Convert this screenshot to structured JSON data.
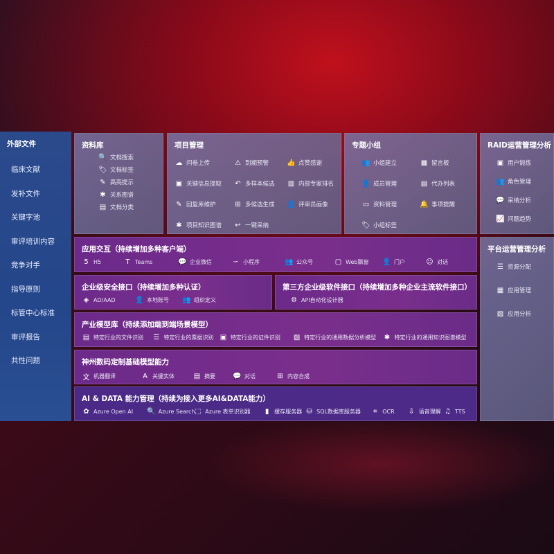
{
  "sidebar": {
    "title": "外部文件",
    "items": [
      "临床文献",
      "发补文件",
      "关键字池",
      "审评培训内容",
      "竞争对手",
      "指导原则",
      "标管中心标准",
      "审评报告",
      "共性问题"
    ]
  },
  "library": {
    "title": "资料库",
    "items": [
      {
        "icon": "file-search-icon",
        "g": "🔍",
        "label": "文档搜索"
      },
      {
        "icon": "tag-icon",
        "g": "🏷",
        "label": "文档标签"
      },
      {
        "icon": "pen-icon",
        "g": "✎",
        "label": "高亮提示"
      },
      {
        "icon": "graph-icon",
        "g": "✱",
        "label": "关系图谱"
      },
      {
        "icon": "doc-icon",
        "g": "▤",
        "label": "文档分类"
      }
    ]
  },
  "project": {
    "title": "项目管理",
    "cols": [
      [
        {
          "icon": "cloud-upload-icon",
          "g": "☁",
          "label": "问卷上传"
        },
        {
          "icon": "window-icon",
          "g": "▣",
          "label": "关键信息提取"
        },
        {
          "icon": "pen-icon",
          "g": "✎",
          "label": "回复库维护"
        },
        {
          "icon": "graph-icon",
          "g": "✱",
          "label": "项目知识图谱"
        }
      ],
      [
        {
          "icon": "alarm-icon",
          "g": "⚠",
          "label": "到期预警"
        },
        {
          "icon": "reply-all-icon",
          "g": "↶",
          "label": "多样本候选"
        },
        {
          "icon": "puzzle-icon",
          "g": "⊞",
          "label": "多候选生成"
        },
        {
          "icon": "reply-icon",
          "g": "↩",
          "label": "一键采纳"
        }
      ],
      [
        {
          "icon": "thumbs-up-icon",
          "g": "👍",
          "label": "点赞感谢"
        },
        {
          "icon": "rank-icon",
          "g": "▥",
          "label": "内部专家排名"
        },
        {
          "icon": "user-icon",
          "g": "👤",
          "label": "评审员画像"
        }
      ]
    ]
  },
  "group": {
    "title": "专题小组",
    "cols": [
      [
        {
          "icon": "users-icon",
          "g": "👥",
          "label": "小组建立"
        },
        {
          "icon": "user-add-icon",
          "g": "👤",
          "label": "成员管理"
        },
        {
          "icon": "folder-icon",
          "g": "▭",
          "label": "资料管理"
        },
        {
          "icon": "tag-icon",
          "g": "🏷",
          "label": "小组标签"
        }
      ],
      [
        {
          "icon": "bbs-icon",
          "g": "▦",
          "label": "留言板"
        },
        {
          "icon": "clipboard-icon",
          "g": "▤",
          "label": "代办列表"
        },
        {
          "icon": "bell-icon",
          "g": "🔔",
          "label": "事项提醒"
        }
      ]
    ]
  },
  "raid": {
    "title": "RAID运营管理分析",
    "items": [
      {
        "icon": "id-card-icon",
        "g": "▣",
        "label": "用户锻炼"
      },
      {
        "icon": "users-icon",
        "g": "👥",
        "label": "角色管理"
      },
      {
        "icon": "qa-icon",
        "g": "💬",
        "label": "采纳分析"
      },
      {
        "icon": "trend-icon",
        "g": "📈",
        "label": "问题趋势"
      }
    ]
  },
  "platform": {
    "title": "平台运营管理分析",
    "items": [
      {
        "icon": "checklist-icon",
        "g": "☰",
        "label": "资源分配"
      },
      {
        "icon": "apps-icon",
        "g": "▦",
        "label": "应用管理"
      },
      {
        "icon": "chart-icon",
        "g": "▨",
        "label": "应用分析"
      }
    ]
  },
  "app": {
    "title": "应用交互（持续增加多种客户端）",
    "items": [
      {
        "icon": "html5-icon",
        "g": "5",
        "label": "H5"
      },
      {
        "icon": "teams-icon",
        "g": "T",
        "label": "Teams"
      },
      {
        "icon": "wechat-icon",
        "g": "💬",
        "label": "企业微信"
      },
      {
        "icon": "miniprogram-icon",
        "g": "∽",
        "label": "小程序"
      },
      {
        "icon": "users-icon",
        "g": "👥",
        "label": "公众号"
      },
      {
        "icon": "window-icon",
        "g": "▢",
        "label": "Web飘窗"
      },
      {
        "icon": "portal-icon",
        "g": "👤",
        "label": "门户"
      },
      {
        "icon": "chat-icon",
        "g": "☺",
        "label": "对话"
      }
    ]
  },
  "security": {
    "title": "企业级安全接口（持续增加多种认证）",
    "items": [
      {
        "icon": "diamond-icon",
        "g": "◈",
        "label": "AD/AAD"
      },
      {
        "icon": "user-lock-icon",
        "g": "👤",
        "label": "本地账号"
      },
      {
        "icon": "org-icon",
        "g": "👥",
        "label": "组织定义"
      }
    ]
  },
  "third": {
    "title": "第三方企业级软件接口（持续增加多种企业主流软件接口）",
    "items": [
      {
        "icon": "gear-icon",
        "g": "⚙",
        "label": "API自动化设计器"
      }
    ]
  },
  "industry": {
    "title": "产业模型库（持续添加端到端场景模型）",
    "items": [
      {
        "icon": "file-icon",
        "g": "▤",
        "label": "特定行业的文件识别"
      },
      {
        "icon": "receipt-icon",
        "g": "☰",
        "label": "特定行业的票据识别"
      },
      {
        "icon": "id-card-icon",
        "g": "▣",
        "label": "特定行业的证件识别"
      },
      {
        "icon": "image-icon",
        "g": "▨",
        "label": "特定行业的通用数据分析模型"
      },
      {
        "icon": "graph-icon",
        "g": "✱",
        "label": "特定行业的通用知识图谱模型"
      }
    ]
  },
  "base": {
    "title": "神州数码定制基础模型能力",
    "items": [
      {
        "icon": "translate-icon",
        "g": "文",
        "label": "机器翻译"
      },
      {
        "icon": "entity-icon",
        "g": "A",
        "label": "关键实体"
      },
      {
        "icon": "summary-icon",
        "g": "▤",
        "label": "摘要"
      },
      {
        "icon": "chat-icon",
        "g": "💬",
        "label": "对话"
      },
      {
        "icon": "puzzle-icon",
        "g": "⊞",
        "label": "内容合成"
      }
    ]
  },
  "aidata": {
    "title": "AI & DATA 能力管理（持续为接入更多AI&DATA能力）",
    "items": [
      {
        "icon": "openai-icon",
        "g": "✿",
        "label": "Azure Open AI"
      },
      {
        "icon": "search-doc-icon",
        "g": "🔍",
        "label": "Azure Search"
      },
      {
        "icon": "form-recognizer-icon",
        "g": "⬚",
        "label": "Azure 表单识别器"
      },
      {
        "icon": "cache-server-icon",
        "g": "▮",
        "label": "缓存服务器"
      },
      {
        "icon": "database-icon",
        "g": "⛁",
        "label": "SQL数据库服务器"
      },
      {
        "icon": "ocr-icon",
        "g": "⌗",
        "label": "OCR"
      },
      {
        "icon": "speech-icon",
        "g": "⇩",
        "label": "语音理解"
      },
      {
        "icon": "tts-icon",
        "g": "♫",
        "label": "TTS"
      }
    ]
  }
}
